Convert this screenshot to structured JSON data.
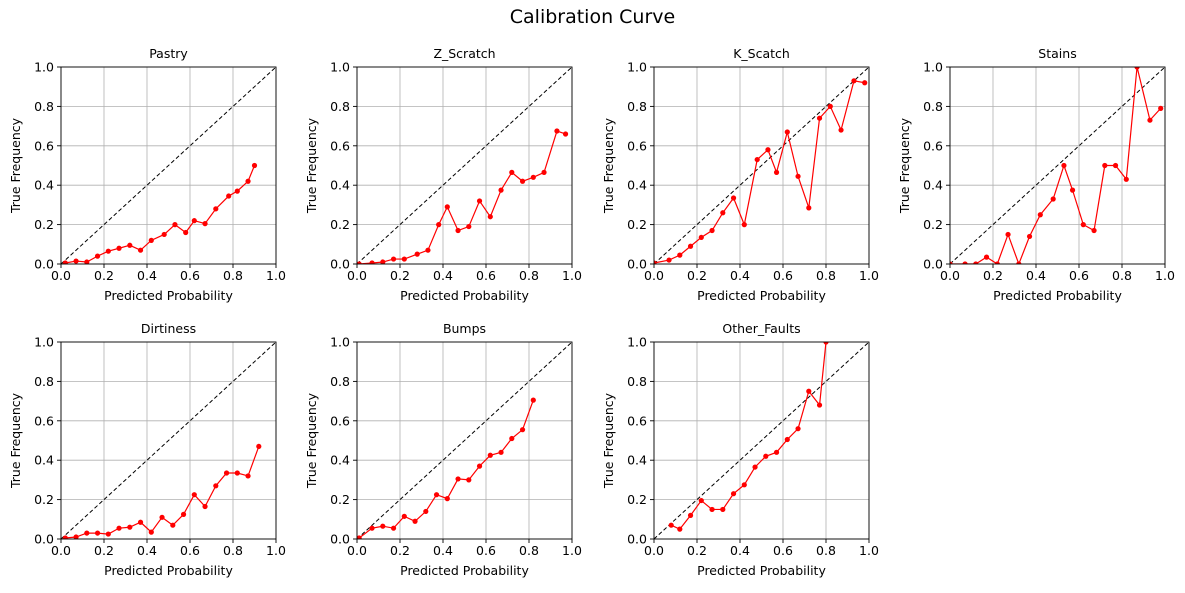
{
  "figure_title": "Calibration Curve",
  "chart_data": [
    {
      "type": "line",
      "title": "Pastry",
      "xlabel": "Predicted Probability",
      "ylabel": "True Frequency",
      "xlim": [
        0,
        1
      ],
      "ylim": [
        0,
        1
      ],
      "xticks": [
        "0.0",
        "0.2",
        "0.4",
        "0.6",
        "0.8",
        "1.0"
      ],
      "yticks": [
        "0.0",
        "0.2",
        "0.4",
        "0.6",
        "0.8",
        "1.0"
      ],
      "grid": true,
      "reference_line": {
        "x": [
          0,
          1
        ],
        "y": [
          0,
          1
        ],
        "style": "dashed",
        "color": "#000000"
      },
      "series": [
        {
          "color": "#ff0000",
          "x": [
            0.02,
            0.07,
            0.12,
            0.17,
            0.22,
            0.27,
            0.32,
            0.37,
            0.42,
            0.48,
            0.53,
            0.58,
            0.62,
            0.67,
            0.72,
            0.78,
            0.82,
            0.87,
            0.9
          ],
          "y": [
            0.005,
            0.015,
            0.01,
            0.04,
            0.065,
            0.08,
            0.095,
            0.07,
            0.12,
            0.15,
            0.2,
            0.16,
            0.22,
            0.205,
            0.28,
            0.345,
            0.37,
            0.42,
            0.5
          ]
        }
      ]
    },
    {
      "type": "line",
      "title": "Z_Scratch",
      "xlabel": "Predicted Probability",
      "ylabel": "True Frequency",
      "xlim": [
        0,
        1
      ],
      "ylim": [
        0,
        1
      ],
      "xticks": [
        "0.0",
        "0.2",
        "0.4",
        "0.6",
        "0.8",
        "1.0"
      ],
      "yticks": [
        "0.0",
        "0.2",
        "0.4",
        "0.6",
        "0.8",
        "1.0"
      ],
      "grid": true,
      "reference_line": {
        "x": [
          0,
          1
        ],
        "y": [
          0,
          1
        ],
        "style": "dashed",
        "color": "#000000"
      },
      "series": [
        {
          "color": "#ff0000",
          "x": [
            0.01,
            0.07,
            0.12,
            0.17,
            0.22,
            0.28,
            0.33,
            0.38,
            0.42,
            0.47,
            0.52,
            0.57,
            0.62,
            0.67,
            0.72,
            0.77,
            0.82,
            0.87,
            0.93,
            0.97
          ],
          "y": [
            0.0,
            0.005,
            0.01,
            0.025,
            0.025,
            0.05,
            0.07,
            0.2,
            0.29,
            0.17,
            0.19,
            0.32,
            0.24,
            0.375,
            0.465,
            0.42,
            0.44,
            0.465,
            0.675,
            0.66
          ]
        }
      ]
    },
    {
      "type": "line",
      "title": "K_Scatch",
      "xlabel": "Predicted Probability",
      "ylabel": "True Frequency",
      "xlim": [
        0,
        1
      ],
      "ylim": [
        0,
        1
      ],
      "xticks": [
        "0.0",
        "0.2",
        "0.4",
        "0.6",
        "0.8",
        "1.0"
      ],
      "yticks": [
        "0.0",
        "0.2",
        "0.4",
        "0.6",
        "0.8",
        "1.0"
      ],
      "grid": true,
      "reference_line": {
        "x": [
          0,
          1
        ],
        "y": [
          0,
          1
        ],
        "style": "dashed",
        "color": "#000000"
      },
      "series": [
        {
          "color": "#ff0000",
          "x": [
            0.0,
            0.07,
            0.12,
            0.17,
            0.22,
            0.27,
            0.32,
            0.37,
            0.42,
            0.48,
            0.53,
            0.57,
            0.62,
            0.67,
            0.72,
            0.77,
            0.82,
            0.87,
            0.93,
            0.98
          ],
          "y": [
            0.005,
            0.02,
            0.045,
            0.09,
            0.135,
            0.17,
            0.26,
            0.335,
            0.2,
            0.53,
            0.58,
            0.465,
            0.67,
            0.445,
            0.285,
            0.74,
            0.8,
            0.68,
            0.93,
            0.92
          ]
        }
      ]
    },
    {
      "type": "line",
      "title": "Stains",
      "xlabel": "Predicted Probability",
      "ylabel": "True Frequency",
      "xlim": [
        0,
        1
      ],
      "ylim": [
        0,
        1
      ],
      "xticks": [
        "0.0",
        "0.2",
        "0.4",
        "0.6",
        "0.8",
        "1.0"
      ],
      "yticks": [
        "0.0",
        "0.2",
        "0.4",
        "0.6",
        "0.8",
        "1.0"
      ],
      "grid": true,
      "reference_line": {
        "x": [
          0,
          1
        ],
        "y": [
          0,
          1
        ],
        "style": "dashed",
        "color": "#000000"
      },
      "series": [
        {
          "color": "#ff0000",
          "x": [
            0.0,
            0.07,
            0.12,
            0.17,
            0.22,
            0.27,
            0.32,
            0.37,
            0.42,
            0.48,
            0.53,
            0.57,
            0.62,
            0.67,
            0.72,
            0.77,
            0.82,
            0.87,
            0.93,
            0.98
          ],
          "y": [
            0.0,
            0.0,
            0.0,
            0.035,
            0.0,
            0.15,
            0.0,
            0.14,
            0.25,
            0.33,
            0.5,
            0.375,
            0.2,
            0.17,
            0.5,
            0.5,
            0.43,
            1.0,
            0.73,
            0.79
          ]
        }
      ]
    },
    {
      "type": "line",
      "title": "Dirtiness",
      "xlabel": "Predicted Probability",
      "ylabel": "True Frequency",
      "xlim": [
        0,
        1
      ],
      "ylim": [
        0,
        1
      ],
      "xticks": [
        "0.0",
        "0.2",
        "0.4",
        "0.6",
        "0.8",
        "1.0"
      ],
      "yticks": [
        "0.0",
        "0.2",
        "0.4",
        "0.6",
        "0.8",
        "1.0"
      ],
      "grid": true,
      "reference_line": {
        "x": [
          0,
          1
        ],
        "y": [
          0,
          1
        ],
        "style": "dashed",
        "color": "#000000"
      },
      "series": [
        {
          "color": "#ff0000",
          "x": [
            0.02,
            0.07,
            0.12,
            0.17,
            0.22,
            0.27,
            0.32,
            0.37,
            0.42,
            0.47,
            0.52,
            0.57,
            0.62,
            0.67,
            0.72,
            0.77,
            0.82,
            0.87,
            0.92
          ],
          "y": [
            0.005,
            0.01,
            0.03,
            0.03,
            0.025,
            0.055,
            0.06,
            0.085,
            0.035,
            0.11,
            0.07,
            0.125,
            0.225,
            0.165,
            0.27,
            0.335,
            0.335,
            0.32,
            0.47
          ]
        }
      ]
    },
    {
      "type": "line",
      "title": "Bumps",
      "xlabel": "Predicted Probability",
      "ylabel": "True Frequency",
      "xlim": [
        0,
        1
      ],
      "ylim": [
        0,
        1
      ],
      "xticks": [
        "0.0",
        "0.2",
        "0.4",
        "0.6",
        "0.8",
        "1.0"
      ],
      "yticks": [
        "0.0",
        "0.2",
        "0.4",
        "0.6",
        "0.8",
        "1.0"
      ],
      "grid": true,
      "reference_line": {
        "x": [
          0,
          1
        ],
        "y": [
          0,
          1
        ],
        "style": "dashed",
        "color": "#000000"
      },
      "series": [
        {
          "color": "#ff0000",
          "x": [
            0.01,
            0.07,
            0.12,
            0.17,
            0.22,
            0.27,
            0.32,
            0.37,
            0.42,
            0.47,
            0.52,
            0.57,
            0.62,
            0.67,
            0.72,
            0.77,
            0.82
          ],
          "y": [
            0.005,
            0.055,
            0.065,
            0.055,
            0.115,
            0.09,
            0.14,
            0.225,
            0.205,
            0.305,
            0.3,
            0.37,
            0.425,
            0.44,
            0.51,
            0.555,
            0.705
          ]
        }
      ]
    },
    {
      "type": "line",
      "title": "Other_Faults",
      "xlabel": "Predicted Probability",
      "ylabel": "True Frequency",
      "xlim": [
        0,
        1
      ],
      "ylim": [
        0,
        1
      ],
      "xticks": [
        "0.0",
        "0.2",
        "0.4",
        "0.6",
        "0.8",
        "1.0"
      ],
      "yticks": [
        "0.0",
        "0.2",
        "0.4",
        "0.6",
        "0.8",
        "1.0"
      ],
      "grid": true,
      "reference_line": {
        "x": [
          0,
          1
        ],
        "y": [
          0,
          1
        ],
        "style": "dashed",
        "color": "#000000"
      },
      "series": [
        {
          "color": "#ff0000",
          "x": [
            0.08,
            0.12,
            0.17,
            0.22,
            0.27,
            0.32,
            0.37,
            0.42,
            0.47,
            0.52,
            0.57,
            0.62,
            0.67,
            0.72,
            0.77,
            0.8
          ],
          "y": [
            0.07,
            0.05,
            0.12,
            0.195,
            0.15,
            0.15,
            0.23,
            0.275,
            0.365,
            0.42,
            0.44,
            0.505,
            0.56,
            0.75,
            0.68,
            1.0
          ]
        }
      ]
    }
  ]
}
